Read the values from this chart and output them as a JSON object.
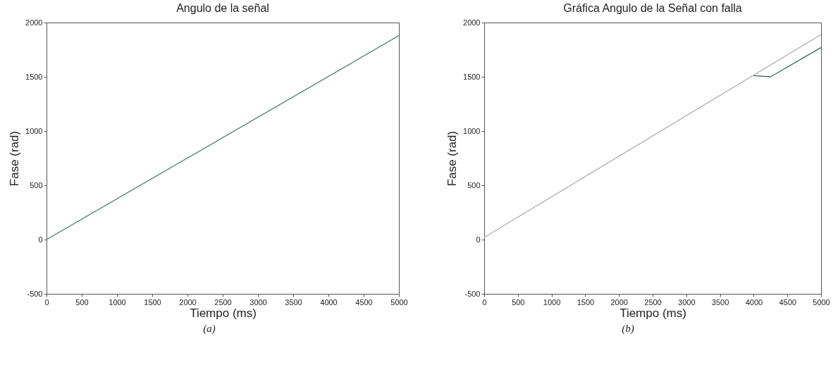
{
  "chart_data": [
    {
      "type": "line",
      "title": "Angulo de la señal",
      "xlabel": "Tiempo (ms)",
      "ylabel": "Fase (rad)",
      "xlim": [
        0,
        5000
      ],
      "ylim": [
        -500,
        2000
      ],
      "xticks": [
        0,
        500,
        1000,
        1500,
        2000,
        2500,
        3000,
        3500,
        4000,
        4500,
        5000
      ],
      "yticks": [
        -500,
        0,
        500,
        1000,
        1500,
        2000
      ],
      "grid": false,
      "annotations": [
        "(a)"
      ],
      "series": [
        {
          "color": "#4f7d74",
          "x": [
            0,
            5000
          ],
          "values": [
            0,
            1880
          ]
        }
      ]
    },
    {
      "type": "line",
      "title": "Gráfica Angulo de la Señal con falla",
      "xlabel": "Tiempo (ms)",
      "ylabel": "Fase (rad)",
      "xlim": [
        0,
        5000
      ],
      "ylim": [
        -500,
        2000
      ],
      "xticks": [
        0,
        500,
        1000,
        1500,
        2000,
        2500,
        3000,
        3500,
        4000,
        4500,
        5000
      ],
      "yticks": [
        -500,
        0,
        500,
        1000,
        1500,
        2000
      ],
      "grid": false,
      "annotations": [
        "(b)"
      ],
      "series": [
        {
          "color": "#a9b0ae",
          "x": [
            0,
            5000
          ],
          "values": [
            20,
            1890
          ]
        },
        {
          "color": "#3d6b62",
          "x": [
            4000,
            4250,
            5000
          ],
          "values": [
            1510,
            1500,
            1770
          ]
        }
      ]
    }
  ]
}
